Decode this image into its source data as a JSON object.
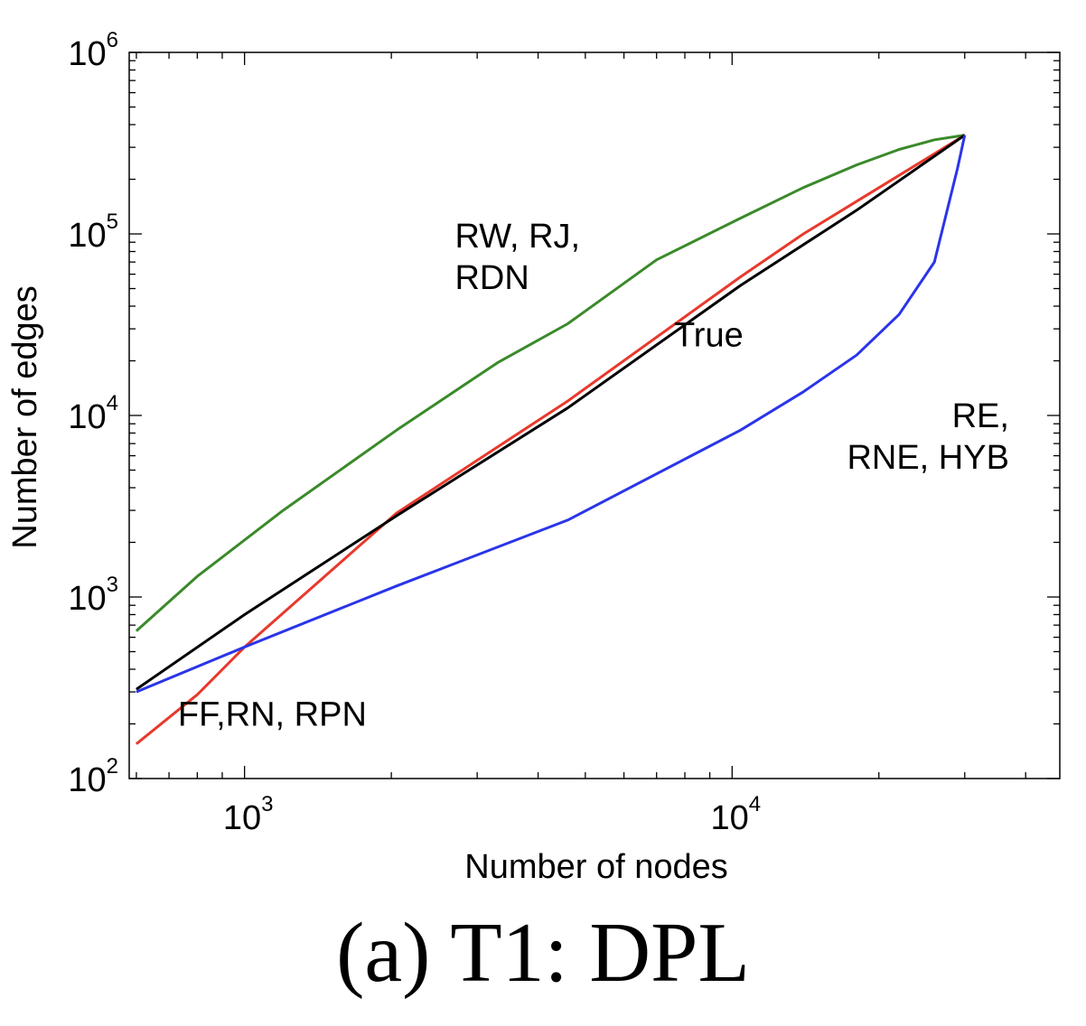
{
  "caption": "(a) T1: DPL",
  "chart_data": {
    "type": "line",
    "xscale": "log",
    "yscale": "log",
    "xlabel": "Number of nodes",
    "ylabel": "Number of edges",
    "xlim": [
      580,
      47000
    ],
    "ylim": [
      100,
      1000000
    ],
    "xticks": [
      {
        "value": 1000,
        "base": "10",
        "exp": "3"
      },
      {
        "value": 10000,
        "base": "10",
        "exp": "4"
      }
    ],
    "yticks": [
      {
        "value": 100,
        "base": "10",
        "exp": "2"
      },
      {
        "value": 1000,
        "base": "10",
        "exp": "3"
      },
      {
        "value": 10000,
        "base": "10",
        "exp": "4"
      },
      {
        "value": 100000,
        "base": "10",
        "exp": "5"
      },
      {
        "value": 1000000,
        "base": "10",
        "exp": "6"
      }
    ],
    "grid": false,
    "series": [
      {
        "color": "#3a8a2a",
        "x": [
          600,
          800,
          1200,
          2050,
          3300,
          4600,
          7000,
          10400,
          14000,
          18000,
          22000,
          26000,
          30000
        ],
        "y": [
          650,
          1300,
          3000,
          8300,
          19500,
          32000,
          72000,
          122000,
          180000,
          240000,
          292000,
          330000,
          350000
        ]
      },
      {
        "color": "#e8392c",
        "x": [
          600,
          800,
          1000,
          2050,
          4600,
          10400,
          14000,
          22000,
          30000
        ],
        "y": [
          155,
          290,
          530,
          2900,
          12000,
          58000,
          100000,
          210000,
          350000
        ]
      },
      {
        "color": "#000000",
        "x": [
          600,
          1000,
          2050,
          4600,
          10400,
          18000,
          30000
        ],
        "y": [
          310,
          800,
          2800,
          11000,
          52000,
          135000,
          350000
        ]
      },
      {
        "color": "#2a35e8",
        "x": [
          600,
          1000,
          2050,
          4600,
          10400,
          14000,
          18000,
          22000,
          26000,
          29000,
          30000
        ],
        "y": [
          300,
          530,
          1150,
          2650,
          8300,
          13500,
          21500,
          36000,
          70000,
          230000,
          350000
        ]
      }
    ],
    "annotations": [
      {
        "lines": [
          "RW, RJ,",
          "RDN"
        ],
        "x": 2700,
        "y": 84000,
        "anchor": "start"
      },
      {
        "lines": [
          "True"
        ],
        "x": 7600,
        "y": 24000,
        "anchor": "start"
      },
      {
        "lines": [
          "RE,",
          "RNE, HYB"
        ],
        "x": 37000,
        "y": 8600,
        "anchor": "end"
      },
      {
        "lines": [
          "FF,RN, RPN"
        ],
        "x": 730,
        "y": 195,
        "anchor": "start"
      }
    ]
  }
}
